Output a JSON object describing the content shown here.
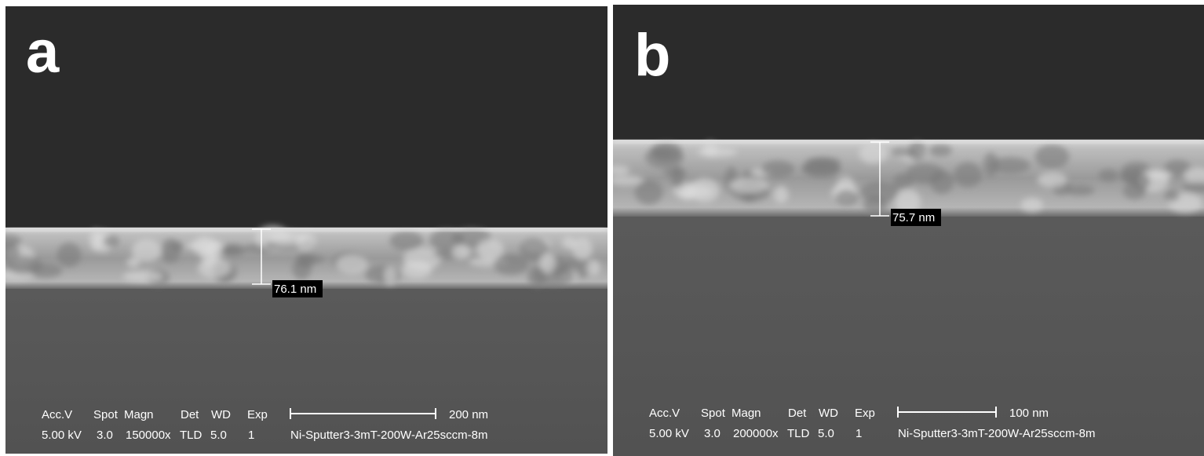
{
  "panels": [
    {
      "label": "a",
      "measurement": "76.1 nm",
      "info_header": [
        "Acc.V",
        "Spot",
        "Magn",
        "Det",
        "WD",
        "Exp"
      ],
      "info_values": [
        "5.00 kV",
        "3.0",
        "150000x",
        "TLD",
        "5.0",
        "1"
      ],
      "scale_label": "200 nm",
      "sample": "Ni-Sputter3-3mT-200W-Ar25sccm-8m"
    },
    {
      "label": "b",
      "measurement": "75.7 nm",
      "info_header": [
        "Acc.V",
        "Spot",
        "Magn",
        "Det",
        "WD",
        "Exp"
      ],
      "info_values": [
        "5.00 kV",
        "3.0",
        "200000x",
        "TLD",
        "5.0",
        "1"
      ],
      "scale_label": "100 nm",
      "sample": "Ni-Sputter3-3mT-200W-Ar25sccm-8m"
    }
  ]
}
